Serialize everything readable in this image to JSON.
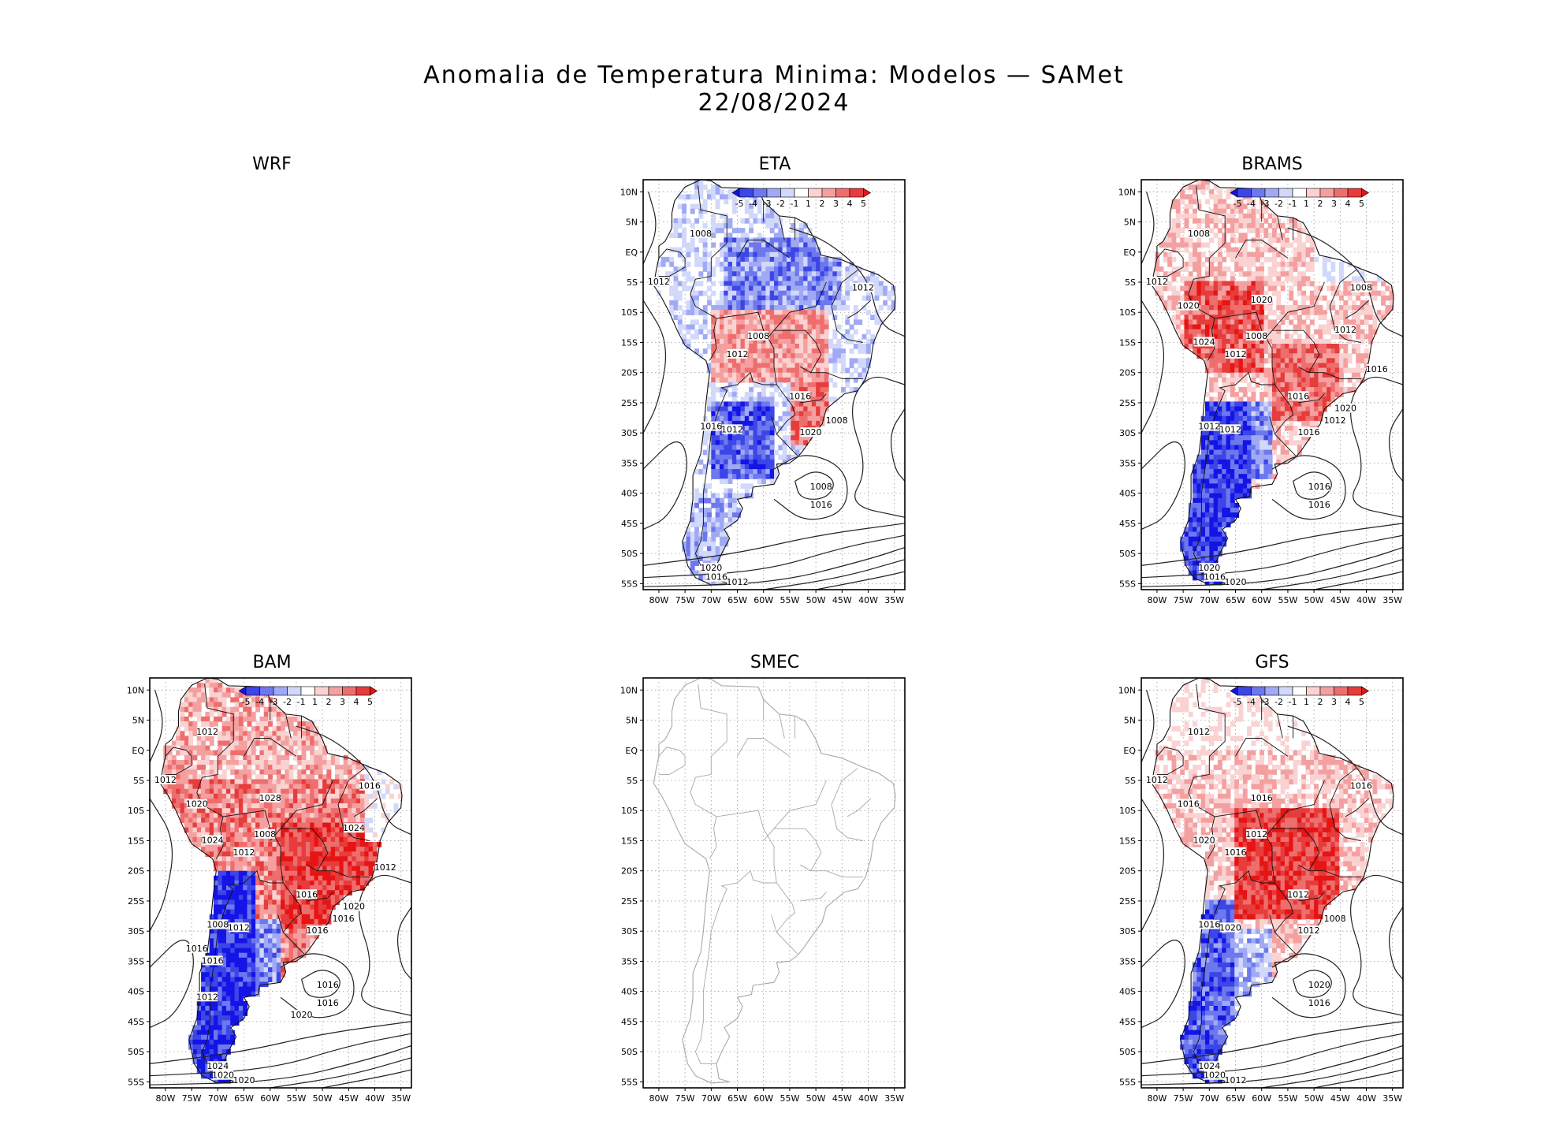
{
  "title": {
    "line1": "Anomalia de Temperatura Minima: Modelos — SAMet",
    "line2": "22/08/2024"
  },
  "axes": {
    "lat_labels": [
      "10N",
      "5N",
      "EQ",
      "5S",
      "10S",
      "15S",
      "20S",
      "25S",
      "30S",
      "35S",
      "40S",
      "45S",
      "50S",
      "55S"
    ],
    "lon_labels": [
      "80W",
      "75W",
      "70W",
      "65W",
      "60W",
      "55W",
      "50W",
      "45W",
      "40W",
      "35W"
    ]
  },
  "colorbar": {
    "labels": [
      "-5",
      "-4",
      "-3",
      "-2",
      "-1",
      "1",
      "2",
      "3",
      "4",
      "5"
    ],
    "colors": [
      "#1414e6",
      "#3c46e6",
      "#6e78ee",
      "#a0aaf4",
      "#d2d8fa",
      "#ffffff",
      "#fad2d2",
      "#f4a0a0",
      "#ee6e6e",
      "#e63c3c",
      "#e61414"
    ]
  },
  "panels": [
    {
      "name": "WRF",
      "empty": true
    },
    {
      "name": "ETA",
      "contours": [
        "1008",
        "1012",
        "1012",
        "1008",
        "1012",
        "1016",
        "1008",
        "1020",
        "1016",
        "1012",
        "1008",
        "1016",
        "1020",
        "1016",
        "1012"
      ]
    },
    {
      "name": "BRAMS",
      "contours": [
        "1008",
        "1012",
        "1008",
        "1008",
        "1012",
        "1016",
        "1012",
        "1016",
        "1012",
        "1012",
        "1016",
        "1016",
        "1020",
        "1016",
        "1020",
        "1020",
        "1024",
        "1020",
        "1012",
        "1016",
        "1020"
      ]
    },
    {
      "name": "BAM",
      "contours": [
        "1012",
        "1012",
        "1016",
        "1008",
        "1012",
        "1016",
        "1016",
        "1016",
        "1008",
        "1012",
        "1016",
        "1016",
        "1024",
        "1020",
        "1020",
        "1020",
        "1024",
        "1028",
        "1024",
        "1012",
        "1020",
        "1016",
        "1012",
        "1016",
        "1020"
      ]
    },
    {
      "name": "SMEC",
      "empty": true
    },
    {
      "name": "GFS",
      "contours": [
        "1012",
        "1012",
        "1016",
        "1012",
        "1016",
        "1012",
        "1008",
        "1012",
        "1016",
        "1020",
        "1020",
        "1016",
        "1024",
        "1020",
        "1012",
        "1016",
        "1020",
        "1016"
      ]
    }
  ]
}
